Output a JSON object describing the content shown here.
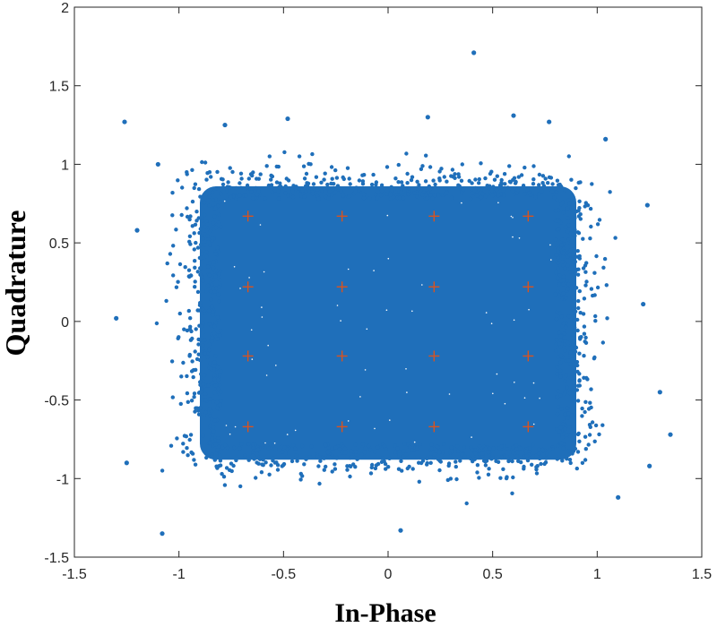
{
  "chart_data": {
    "type": "scatter",
    "title": "",
    "xlabel": "In-Phase",
    "ylabel": "Quadrature",
    "xlim": [
      -1.5,
      1.5
    ],
    "ylim": [
      -1.5,
      2
    ],
    "xticks": [
      -1.5,
      -1,
      -0.5,
      0,
      0.5,
      1,
      1.5
    ],
    "xtick_labels": [
      "-1.5",
      "-1",
      "-0.5",
      "0",
      "0.5",
      "1",
      "1.5"
    ],
    "yticks": [
      -1.5,
      -1,
      -0.5,
      0,
      0.5,
      1,
      1.5,
      2
    ],
    "ytick_labels": [
      "-1.5",
      "-1",
      "-0.5",
      "0",
      "0.5",
      "1",
      "1.5",
      "2"
    ],
    "grid": false,
    "legend": "none",
    "series": [
      {
        "role": "received-symbols",
        "color": "#1f6fba",
        "marker": "dot",
        "distribution": "dense cloud spanning roughly I -0.9 to 0.9 and Q -0.95 to 0.95",
        "outliers": [
          {
            "x": 0.41,
            "y": 1.71
          },
          {
            "x": -1.26,
            "y": 1.27
          },
          {
            "x": -0.48,
            "y": 1.29
          },
          {
            "x": -1.3,
            "y": 0.02
          },
          {
            "x": -1.08,
            "y": -1.35
          },
          {
            "x": 1.35,
            "y": -0.72
          },
          {
            "x": 1.25,
            "y": -0.92
          },
          {
            "x": 1.22,
            "y": 0.11
          },
          {
            "x": 1.3,
            "y": -0.45
          },
          {
            "x": -1.25,
            "y": -0.9
          },
          {
            "x": 0.06,
            "y": -1.33
          },
          {
            "x": 1.04,
            "y": 1.16
          },
          {
            "x": 1.24,
            "y": 0.74
          },
          {
            "x": -1.2,
            "y": 0.58
          },
          {
            "x": 0.77,
            "y": 1.27
          },
          {
            "x": 0.6,
            "y": 1.31
          },
          {
            "x": -0.78,
            "y": 1.25
          },
          {
            "x": 1.1,
            "y": -1.12
          },
          {
            "x": -1.1,
            "y": 1.0
          },
          {
            "x": 0.19,
            "y": 1.3
          }
        ]
      },
      {
        "role": "reference-constellation",
        "color": "#d9531e",
        "marker": "plus",
        "points": [
          {
            "x": -0.67,
            "y": 0.67
          },
          {
            "x": -0.22,
            "y": 0.67
          },
          {
            "x": 0.22,
            "y": 0.67
          },
          {
            "x": 0.67,
            "y": 0.67
          },
          {
            "x": -0.67,
            "y": 0.22
          },
          {
            "x": -0.22,
            "y": 0.22
          },
          {
            "x": 0.22,
            "y": 0.22
          },
          {
            "x": 0.67,
            "y": 0.22
          },
          {
            "x": -0.67,
            "y": -0.22
          },
          {
            "x": -0.22,
            "y": -0.22
          },
          {
            "x": 0.22,
            "y": -0.22
          },
          {
            "x": 0.67,
            "y": -0.22
          },
          {
            "x": -0.67,
            "y": -0.67
          },
          {
            "x": -0.22,
            "y": -0.67
          },
          {
            "x": 0.22,
            "y": -0.67
          },
          {
            "x": 0.67,
            "y": -0.67
          }
        ]
      }
    ]
  }
}
